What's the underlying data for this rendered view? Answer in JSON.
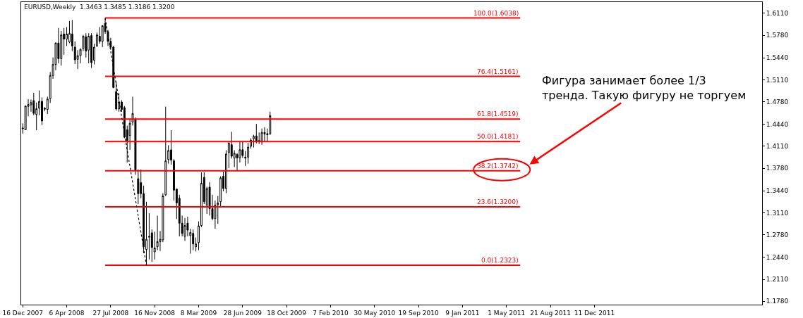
{
  "chart_data": {
    "type": "candlestick",
    "title": "EURUSD,Weekly  1.3463 1.3485 1.3186 1.3200",
    "color": "#000000",
    "x": [
      "2007-12-16",
      "2007-12-23",
      "2007-12-30",
      "2008-01-06",
      "2008-01-13",
      "2008-01-20",
      "2008-01-27",
      "2008-02-03",
      "2008-02-10",
      "2008-02-17",
      "2008-02-24",
      "2008-03-02",
      "2008-03-09",
      "2008-03-16",
      "2008-03-23",
      "2008-03-30",
      "2008-04-06",
      "2008-04-13",
      "2008-04-20",
      "2008-04-27",
      "2008-05-04",
      "2008-05-11",
      "2008-05-18",
      "2008-05-25",
      "2008-06-01",
      "2008-06-08",
      "2008-06-15",
      "2008-06-22",
      "2008-06-29",
      "2008-07-06",
      "2008-07-13",
      "2008-07-20",
      "2008-07-27",
      "2008-08-03",
      "2008-08-10",
      "2008-08-17",
      "2008-08-24",
      "2008-08-31",
      "2008-09-07",
      "2008-09-14",
      "2008-09-21",
      "2008-09-28",
      "2008-10-05",
      "2008-10-12",
      "2008-10-19",
      "2008-10-26",
      "2008-11-02",
      "2008-11-09",
      "2008-11-16",
      "2008-11-23",
      "2008-11-30",
      "2008-12-07",
      "2008-12-14",
      "2008-12-21",
      "2008-12-28",
      "2009-01-04",
      "2009-01-11",
      "2009-01-18",
      "2009-01-25",
      "2009-02-01",
      "2009-02-08",
      "2009-02-15",
      "2009-02-22",
      "2009-03-01",
      "2009-03-08",
      "2009-03-15",
      "2009-03-22",
      "2009-03-29",
      "2009-04-05",
      "2009-04-12",
      "2009-04-19",
      "2009-04-26",
      "2009-05-03",
      "2009-05-10",
      "2009-05-17",
      "2009-05-24",
      "2009-05-31",
      "2009-06-07",
      "2009-06-14",
      "2009-06-21",
      "2009-06-28",
      "2009-07-05",
      "2009-07-12",
      "2009-07-19",
      "2009-07-26",
      "2009-08-02",
      "2009-08-09",
      "2009-08-16",
      "2009-08-23",
      "2009-08-30",
      "2009-09-06"
    ],
    "ohlc": [
      [
        1.4385,
        1.4455,
        1.43,
        1.4375
      ],
      [
        1.4358,
        1.4716,
        1.4358,
        1.4716
      ],
      [
        1.4709,
        1.482,
        1.456,
        1.4737
      ],
      [
        1.4733,
        1.4813,
        1.4629,
        1.4768
      ],
      [
        1.4796,
        1.4913,
        1.4577,
        1.4605
      ],
      [
        1.4587,
        1.4768,
        1.4351,
        1.4674
      ],
      [
        1.4681,
        1.4948,
        1.4577,
        1.4785
      ],
      [
        1.4785,
        1.4844,
        1.4428,
        1.449
      ],
      [
        1.4667,
        1.4698,
        1.4636,
        1.4681
      ],
      [
        1.4664,
        1.4855,
        1.4594,
        1.482
      ],
      [
        1.4827,
        1.5226,
        1.4761,
        1.5174
      ],
      [
        1.5174,
        1.5444,
        1.5125,
        1.534
      ],
      [
        1.534,
        1.567,
        1.5254,
        1.5663
      ],
      [
        1.5663,
        1.5889,
        1.5358,
        1.5427
      ],
      [
        1.5427,
        1.5843,
        1.5323,
        1.5784
      ],
      [
        1.5798,
        1.5889,
        1.5486,
        1.5722
      ],
      [
        1.5722,
        1.5902,
        1.5618,
        1.5798
      ],
      [
        1.568,
        1.5993,
        1.566,
        1.5805
      ],
      [
        1.5798,
        1.6007,
        1.5542,
        1.5618
      ],
      [
        1.5601,
        1.5687,
        1.5347,
        1.541
      ],
      [
        1.5417,
        1.5555,
        1.5271,
        1.5472
      ],
      [
        1.5472,
        1.5583,
        1.5358,
        1.5566
      ],
      [
        1.5583,
        1.5784,
        1.5542,
        1.5763
      ],
      [
        1.5757,
        1.5809,
        1.5444,
        1.5542
      ],
      [
        1.5556,
        1.5809,
        1.5358,
        1.5764
      ],
      [
        1.5774,
        1.5809,
        1.5288,
        1.5368
      ],
      [
        1.5403,
        1.5653,
        1.534,
        1.5601
      ],
      [
        1.5618,
        1.5819,
        1.5601,
        1.5784
      ],
      [
        1.5764,
        1.5902,
        1.5653,
        1.5687
      ],
      [
        1.5687,
        1.593,
        1.5601,
        1.5923
      ],
      [
        1.5958,
        1.6038,
        1.58,
        1.5833
      ],
      [
        1.5833,
        1.586,
        1.5618,
        1.5687
      ],
      [
        1.5687,
        1.574,
        1.556,
        1.56
      ],
      [
        1.56,
        1.562,
        1.4983,
        1.4994
      ],
      [
        1.4932,
        1.5081,
        1.4647,
        1.4671
      ],
      [
        1.4671,
        1.4907,
        1.463,
        1.4775
      ],
      [
        1.4775,
        1.4803,
        1.463,
        1.4664
      ],
      [
        1.4692,
        1.4716,
        1.4231,
        1.4248
      ],
      [
        1.4359,
        1.4421,
        1.3866,
        1.4196
      ],
      [
        1.4272,
        1.4526,
        1.4057,
        1.4456
      ],
      [
        1.4474,
        1.4855,
        1.4421,
        1.4602
      ],
      [
        1.4508,
        1.4543,
        1.3682,
        1.3752
      ],
      [
        1.3623,
        1.3762,
        1.3242,
        1.3398
      ],
      [
        1.3564,
        1.3762,
        1.3328,
        1.3398
      ],
      [
        1.3398,
        1.3519,
        1.2503,
        1.26
      ],
      [
        1.2558,
        1.3276,
        1.2323,
        1.2711
      ],
      [
        1.2756,
        1.3103,
        1.2409,
        1.2746
      ],
      [
        1.2808,
        1.286,
        1.2374,
        1.2589
      ],
      [
        1.2523,
        1.2825,
        1.2409,
        1.2582
      ],
      [
        1.26,
        1.3068,
        1.2548,
        1.2676
      ],
      [
        1.2676,
        1.2836,
        1.2537,
        1.2711
      ],
      [
        1.2704,
        1.3405,
        1.2669,
        1.3363
      ],
      [
        1.3381,
        1.4706,
        1.3363,
        1.3891
      ],
      [
        1.3911,
        1.4126,
        1.3849,
        1.4047
      ],
      [
        1.4057,
        1.4352,
        1.3832,
        1.3901
      ],
      [
        1.3891,
        1.3918,
        1.3294,
        1.345
      ],
      [
        1.3467,
        1.3467,
        1.3016,
        1.3259
      ],
      [
        1.3328,
        1.3381,
        1.2756,
        1.2954
      ],
      [
        1.2954,
        1.3068,
        1.2756,
        1.2801
      ],
      [
        1.2756,
        1.3033,
        1.2687,
        1.2919
      ],
      [
        1.2954,
        1.3051,
        1.2756,
        1.285
      ],
      [
        1.2766,
        1.287,
        1.2496,
        1.2815
      ],
      [
        1.2801,
        1.286,
        1.2548,
        1.2642
      ],
      [
        1.26,
        1.2739,
        1.2531,
        1.2642
      ],
      [
        1.2663,
        1.2982,
        1.2548,
        1.2913
      ],
      [
        1.2919,
        1.3718,
        1.2895,
        1.3555
      ],
      [
        1.3641,
        1.3718,
        1.3242,
        1.3277
      ],
      [
        1.3225,
        1.3502,
        1.3093,
        1.3475
      ],
      [
        1.3496,
        1.3572,
        1.3069,
        1.3173
      ],
      [
        1.3173,
        1.3381,
        1.2999,
        1.3024
      ],
      [
        1.3024,
        1.3294,
        1.2871,
        1.3225
      ],
      [
        1.3232,
        1.3364,
        1.2947,
        1.3259
      ],
      [
        1.3277,
        1.3659,
        1.3207,
        1.3634
      ],
      [
        1.3659,
        1.3728,
        1.3433,
        1.3475
      ],
      [
        1.3475,
        1.4051,
        1.3405,
        1.3995
      ],
      [
        1.4016,
        1.4179,
        1.378,
        1.4155
      ],
      [
        1.4134,
        1.4328,
        1.3926,
        1.396
      ],
      [
        1.3933,
        1.4051,
        1.3797,
        1.4005
      ],
      [
        1.3988,
        1.4005,
        1.3738,
        1.3936
      ],
      [
        1.3936,
        1.4189,
        1.3867,
        1.4058
      ],
      [
        1.4058,
        1.4189,
        1.3936,
        1.3971
      ],
      [
        1.3946,
        1.404,
        1.3815,
        1.3933
      ],
      [
        1.3946,
        1.4162,
        1.3849,
        1.4099
      ],
      [
        1.411,
        1.4231,
        1.4075,
        1.4203
      ],
      [
        1.4224,
        1.4283,
        1.4092,
        1.4259
      ],
      [
        1.4266,
        1.4446,
        1.4155,
        1.4189
      ],
      [
        1.4196,
        1.4318,
        1.4144,
        1.4179
      ],
      [
        1.4189,
        1.4377,
        1.4134,
        1.4318
      ],
      [
        1.4318,
        1.4398,
        1.4179,
        1.4294
      ],
      [
        1.43,
        1.4377,
        1.4179,
        1.4283
      ],
      [
        1.4294,
        1.463,
        1.4283,
        1.4571
      ]
    ],
    "series": [
      {
        "type": "line",
        "x": [
          "2008-07-13",
          "2011-06-05"
        ],
        "values": [
          1.6038,
          1.6038
        ],
        "color": "#ff0000",
        "line_style": "solid"
      },
      {
        "type": "line",
        "x": [
          "2008-07-13",
          "2011-06-05"
        ],
        "values": [
          1.5161,
          1.5161
        ],
        "color": "#ff0000",
        "line_style": "solid"
      },
      {
        "type": "line",
        "x": [
          "2008-07-13",
          "2011-06-05"
        ],
        "values": [
          1.4519,
          1.4519
        ],
        "color": "#ff0000",
        "line_style": "solid"
      },
      {
        "type": "line",
        "x": [
          "2008-07-13",
          "2011-06-05"
        ],
        "values": [
          1.4181,
          1.4181
        ],
        "color": "#ff0000",
        "line_style": "solid"
      },
      {
        "type": "line",
        "x": [
          "2008-07-13",
          "2011-06-05"
        ],
        "values": [
          1.3742,
          1.3742
        ],
        "color": "#ff0000",
        "line_style": "solid"
      },
      {
        "type": "line",
        "x": [
          "2008-07-13",
          "2011-06-05"
        ],
        "values": [
          1.32,
          1.32
        ],
        "color": "#ff0000",
        "line_style": "solid"
      },
      {
        "type": "line",
        "x": [
          "2008-07-13",
          "2011-06-05"
        ],
        "values": [
          1.2323,
          1.2323
        ],
        "color": "#ff0000",
        "line_style": "solid"
      },
      {
        "type": "line",
        "x": [
          "2008-07-13",
          "2008-10-26"
        ],
        "values": [
          1.6038,
          1.2323
        ],
        "color": "#000000",
        "line_style": "dotted"
      }
    ],
    "annotations": [
      {
        "text": "100.0(1.6038)",
        "x": "2011-06-05",
        "y": 1.6038
      },
      {
        "text": "76.4(1.5161)",
        "x": "2011-06-05",
        "y": 1.5161
      },
      {
        "text": "61.8(1.4519)",
        "x": "2011-06-05",
        "y": 1.4519
      },
      {
        "text": "50.0(1.4181)",
        "x": "2011-06-05",
        "y": 1.4181
      },
      {
        "text": "38.2(1.3742)",
        "x": "2011-06-05",
        "y": 1.3742
      },
      {
        "text": "23.6(1.3200)",
        "x": "2011-06-05",
        "y": 1.32
      },
      {
        "text": "0.0(1.2323)",
        "x": "2011-06-05",
        "y": 1.2323
      },
      {
        "text": "Фигура занимает более 1/3\nтренда. Такую фигуру не торгуем",
        "x": "2011-06-05",
        "y": 1.3742
      }
    ],
    "xlim": [
      "2007-12-12",
      "2013-02-10"
    ],
    "xticks": [
      {
        "value": "2007-12-16",
        "label": "16 Dec 2007"
      },
      {
        "value": "2008-04-06",
        "label": "6 Apr 2008"
      },
      {
        "value": "2008-07-27",
        "label": "27 Jul 2008"
      },
      {
        "value": "2008-11-16",
        "label": "16 Nov 2008"
      },
      {
        "value": "2009-03-08",
        "label": "8 Mar 2009"
      },
      {
        "value": "2009-06-28",
        "label": "28 Jun 2009"
      },
      {
        "value": "2009-10-18",
        "label": "18 Oct 2009"
      },
      {
        "value": "2010-02-07",
        "label": "7 Feb 2010"
      },
      {
        "value": "2010-05-30",
        "label": "30 May 2010"
      },
      {
        "value": "2010-09-19",
        "label": "19 Sep 2010"
      },
      {
        "value": "2011-01-09",
        "label": "9 Jan 2011"
      },
      {
        "value": "2011-05-01",
        "label": "1 May 2011"
      },
      {
        "value": "2011-08-21",
        "label": "21 Aug 2011"
      },
      {
        "value": "2011-12-11",
        "label": "11 Dec 2011"
      }
    ],
    "ylim": [
      1.173,
      1.6277
    ],
    "yticks": [
      {
        "value": 1.611,
        "label": "1.6110"
      },
      {
        "value": 1.578,
        "label": "1.5780"
      },
      {
        "value": 1.544,
        "label": "1.5440"
      },
      {
        "value": 1.511,
        "label": "1.5110"
      },
      {
        "value": 1.478,
        "label": "1.4780"
      },
      {
        "value": 1.444,
        "label": "1.4440"
      },
      {
        "value": 1.411,
        "label": "1.4110"
      },
      {
        "value": 1.378,
        "label": "1.3780"
      },
      {
        "value": 1.344,
        "label": "1.3440"
      },
      {
        "value": 1.311,
        "label": "1.3110"
      },
      {
        "value": 1.278,
        "label": "1.2780"
      },
      {
        "value": 1.244,
        "label": "1.2440"
      },
      {
        "value": 1.211,
        "label": "1.2110"
      },
      {
        "value": 1.178,
        "label": "1.1780"
      }
    ],
    "marker": "none"
  }
}
